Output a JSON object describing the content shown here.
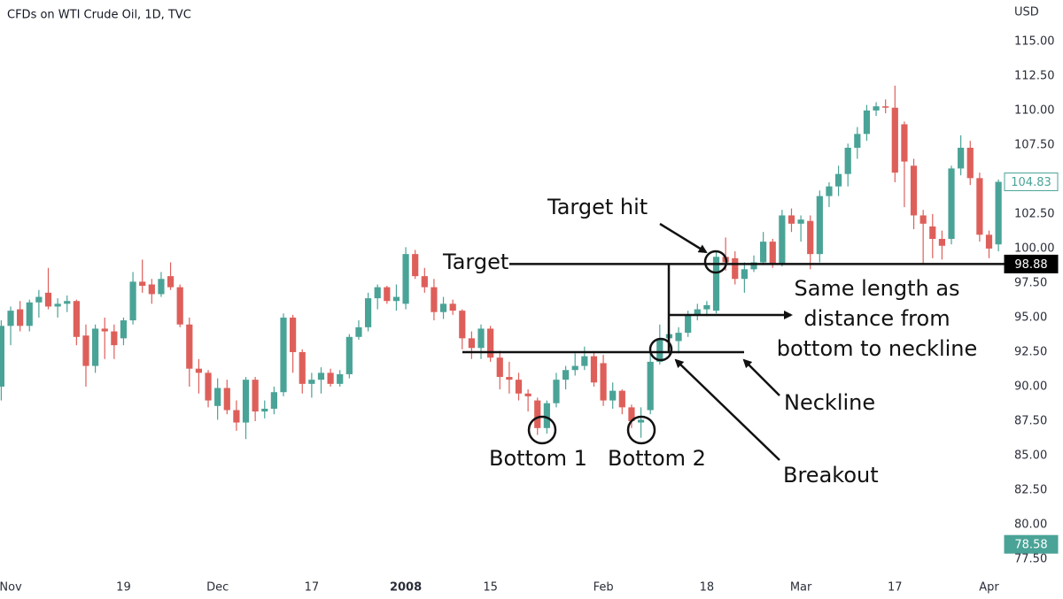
{
  "chart_data": {
    "type": "candlestick",
    "title": "CFDs on WTI Crude Oil, 1D, TVC",
    "y_axis_label": "USD",
    "up_color": "#4aa397",
    "down_color": "#de5f5a",
    "grid": false,
    "ylim": [
      76.35,
      118.0
    ],
    "yticks": [
      {
        "value": 77.5,
        "label": "77.50"
      },
      {
        "value": 80,
        "label": "80.00"
      },
      {
        "value": 82.5,
        "label": "82.50"
      },
      {
        "value": 85,
        "label": "85.00"
      },
      {
        "value": 87.5,
        "label": "87.50"
      },
      {
        "value": 90,
        "label": "90.00"
      },
      {
        "value": 92.5,
        "label": "92.50"
      },
      {
        "value": 95,
        "label": "95.00"
      },
      {
        "value": 97.5,
        "label": "97.50"
      },
      {
        "value": 100,
        "label": "100.00"
      },
      {
        "value": 102.5,
        "label": "102.50"
      },
      {
        "value": 105,
        "label": "105.00"
      },
      {
        "value": 107.5,
        "label": "107.50"
      },
      {
        "value": 110,
        "label": "110.00"
      },
      {
        "value": 112.5,
        "label": "112.50"
      },
      {
        "value": 115,
        "label": "115.00"
      }
    ],
    "categories": [
      null,
      "Nov",
      null,
      null,
      null,
      null,
      null,
      null,
      null,
      null,
      null,
      null,
      null,
      "19",
      null,
      null,
      null,
      null,
      null,
      null,
      null,
      null,
      null,
      "Dec",
      null,
      null,
      null,
      null,
      null,
      null,
      null,
      null,
      null,
      "17",
      null,
      null,
      null,
      null,
      null,
      null,
      null,
      null,
      null,
      "2008",
      null,
      null,
      null,
      null,
      null,
      null,
      null,
      null,
      "15",
      null,
      null,
      null,
      null,
      null,
      null,
      null,
      null,
      null,
      null,
      null,
      "Feb",
      null,
      null,
      null,
      null,
      null,
      null,
      null,
      null,
      null,
      null,
      "18",
      null,
      null,
      null,
      null,
      null,
      null,
      null,
      null,
      null,
      "Mar",
      null,
      null,
      null,
      null,
      null,
      null,
      null,
      null,
      null,
      "17",
      null,
      null,
      null,
      null,
      null,
      null,
      null,
      null,
      null,
      "Apr",
      null
    ],
    "open": [
      90,
      94.4,
      95.6,
      94.4,
      96.1,
      96.8,
      95.8,
      96,
      96.2,
      93.7,
      91.5,
      94.2,
      94,
      93.5,
      94.8,
      97.6,
      97.4,
      96.7,
      98,
      97.2,
      94.5,
      91.3,
      91,
      88.6,
      89.9,
      88.3,
      87.4,
      90.5,
      88.2,
      88.4,
      89.6,
      95,
      92.5,
      90.2,
      90.5,
      91,
      90.2,
      90.9,
      93.6,
      94.3,
      96.4,
      97.2,
      96.2,
      96,
      99.6,
      98,
      97.2,
      95.4,
      96,
      95.5,
      93.5,
      92.8,
      94.2,
      92.1,
      90.7,
      90.5,
      89.5,
      89,
      87,
      88.8,
      90.5,
      91.2,
      91.5,
      92.2,
      91.7,
      89,
      89.7,
      88.5,
      87.4,
      88.3,
      91.8,
      93.5,
      93.3,
      93.9,
      95.2,
      95.6,
      95.5,
      99.4,
      99.3,
      97.8,
      98.5,
      99,
      100.5,
      98.9,
      102.4,
      101.8,
      102,
      99.6,
      103.8,
      104.5,
      105.4,
      107.3,
      108.3,
      110,
      110.3,
      110.2,
      109,
      106,
      102.4,
      101.6,
      100.7,
      100.7,
      105.8,
      107.3,
      105.1,
      101,
      100.3
    ],
    "high": [
      94.8,
      95.8,
      96.2,
      96.3,
      97,
      98.6,
      96.4,
      96.6,
      96.3,
      94.5,
      94.5,
      95,
      94.5,
      95,
      98.3,
      99.2,
      97.8,
      98.3,
      99,
      97.4,
      95,
      92,
      91.2,
      90.6,
      90.5,
      89,
      90.7,
      90.7,
      89,
      90,
      95.3,
      95.2,
      92.7,
      91,
      91.4,
      91.3,
      91.2,
      93.8,
      94.8,
      96.8,
      97.4,
      97.3,
      97.4,
      100.1,
      99.9,
      98.6,
      97.8,
      96.5,
      96.3,
      95.6,
      94,
      94.5,
      94.4,
      92.6,
      91.8,
      91,
      89.8,
      89.2,
      89,
      91,
      91.5,
      92.4,
      92.9,
      92.5,
      92.3,
      90.3,
      89.8,
      88.7,
      88.5,
      92.7,
      94.5,
      94.4,
      94.3,
      95.5,
      96,
      96.2,
      99.8,
      100.8,
      99.8,
      99,
      99.5,
      101.2,
      100.7,
      102.8,
      102.9,
      102.4,
      102.4,
      104.2,
      104.8,
      106,
      107.6,
      108.8,
      110.4,
      110.6,
      110.8,
      111.8,
      109.2,
      106.5,
      102.8,
      102.5,
      101.3,
      106,
      108.2,
      107.8,
      105.5,
      101.3,
      105
    ],
    "low": [
      89,
      93,
      94,
      94,
      95,
      95.6,
      95,
      95.4,
      93,
      90,
      91,
      92,
      92,
      93,
      94.5,
      96.8,
      96,
      96.5,
      97,
      94.3,
      90,
      89.5,
      88.5,
      87.6,
      88,
      86.8,
      86.2,
      87.5,
      87.7,
      88,
      89.3,
      91,
      89.5,
      89.2,
      89.5,
      90,
      90,
      90.6,
      93.4,
      94,
      95.6,
      96,
      95.5,
      95.6,
      97.8,
      96.8,
      94.8,
      94.9,
      95.2,
      92.7,
      92,
      92,
      91.8,
      89.8,
      89.5,
      89,
      88.2,
      86.5,
      86.6,
      88.5,
      89.8,
      90.8,
      91.2,
      90,
      88.6,
      88.4,
      88,
      87,
      86.3,
      88,
      91.6,
      92.3,
      92.4,
      93.6,
      94.8,
      95.1,
      95.3,
      98.4,
      97.4,
      96.8,
      98.3,
      98.8,
      98.6,
      98.7,
      101.2,
      100.5,
      98.5,
      99,
      103,
      103.8,
      104.5,
      106.5,
      107.8,
      109.6,
      109.8,
      104.8,
      103,
      101.4,
      98.9,
      99.3,
      99.2,
      100.3,
      105.3,
      104.6,
      100.5,
      99.3,
      99.8
    ],
    "close": [
      94.4,
      95.5,
      94.4,
      96.1,
      96.5,
      95.8,
      96,
      96.2,
      93.6,
      91.5,
      94.2,
      94,
      93,
      94.8,
      97.6,
      97.3,
      96.7,
      97.8,
      97.2,
      94.5,
      91.3,
      91,
      89,
      89.9,
      88.3,
      87.4,
      90.5,
      88.2,
      88.4,
      89.6,
      95,
      92.5,
      90.2,
      90.5,
      91,
      90.2,
      90.9,
      93.6,
      94.3,
      96.4,
      97.2,
      96.2,
      96.5,
      99.6,
      98,
      97.2,
      95.4,
      96,
      95.5,
      93.5,
      92.8,
      94.2,
      92.1,
      90.7,
      90.5,
      89.5,
      89.3,
      87,
      88.8,
      90.5,
      91.2,
      91.5,
      92.2,
      90.3,
      89,
      89.7,
      88.5,
      87.5,
      87.6,
      91.8,
      93.5,
      93.8,
      93.9,
      95.2,
      95.6,
      95.9,
      99.4,
      99,
      97.8,
      98.5,
      99,
      100.5,
      98.9,
      102.4,
      101.8,
      102.1,
      99.6,
      103.8,
      104.5,
      105.4,
      107.3,
      108.3,
      110,
      110.3,
      110.2,
      105.5,
      106.3,
      102.4,
      101.8,
      100.7,
      100.2,
      105.8,
      107.3,
      105.1,
      101,
      100,
      104.83
    ],
    "price_labels": [
      {
        "value": 104.83,
        "fill": "#ffffff",
        "border": "#4aa397",
        "text_color": "#4aa397"
      },
      {
        "value": 98.88,
        "fill": "#000000",
        "border": "#000000",
        "text_color": "#ffffff"
      },
      {
        "value": 78.58,
        "fill": "#4aa397",
        "border": "#4aa397",
        "text_color": "#ffffff"
      }
    ],
    "annotations": {
      "target_hit": "Target hit",
      "target": "Target",
      "measure": [
        "Same length as",
        "distance from",
        "bottom to neckline"
      ],
      "neckline": "Neckline",
      "breakout": "Breakout",
      "bottom_1": "Bottom 1",
      "bottom_2": "Bottom 2"
    }
  }
}
